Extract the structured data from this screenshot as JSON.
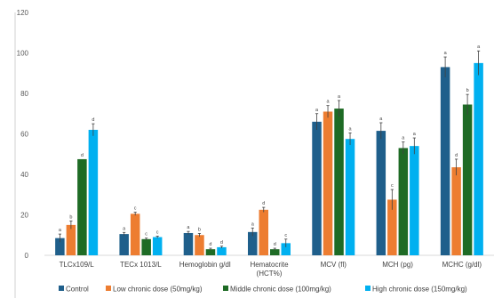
{
  "chart_data": {
    "type": "bar",
    "title": "",
    "xlabel": "",
    "ylabel": "",
    "ylim": [
      0,
      120
    ],
    "yticks": [
      0,
      20,
      40,
      60,
      80,
      100,
      120
    ],
    "grid": false,
    "legend_position": "bottom",
    "categories": [
      [
        "TLCx109/L"
      ],
      [
        "TECx 1013/L"
      ],
      [
        "Hemoglobin g/dl"
      ],
      [
        "Hematocrite",
        "(HCT%)"
      ],
      [
        "MCV (fl)"
      ],
      [
        "MCH (pg)"
      ],
      [
        "MCHC (g/dl)"
      ]
    ],
    "series": [
      {
        "name": "Control",
        "color": "#1f5f8b",
        "values": [
          8.5,
          10.5,
          11,
          11.5,
          66,
          61.5,
          93
        ],
        "errors": [
          2,
          0.8,
          0.8,
          2,
          4,
          4,
          5
        ],
        "labels": [
          "a",
          "a",
          "a",
          "a",
          "a",
          "a",
          "a"
        ]
      },
      {
        "name": "Low chronic dose (50mg/kg)",
        "color": "#ed7d31",
        "values": [
          15,
          20.5,
          10,
          22.5,
          71,
          27.5,
          43.5
        ],
        "errors": [
          2,
          0.8,
          0.8,
          1.2,
          3,
          5,
          4
        ],
        "labels": [
          "b",
          "c",
          "b",
          "d",
          "a",
          "c",
          "d"
        ]
      },
      {
        "name": "Middle chronic dose (100mg/kg)",
        "color": "#1e6b25",
        "values": [
          47.5,
          8,
          3,
          3,
          72.5,
          53,
          74.5
        ],
        "errors": [
          0,
          0.5,
          0.5,
          0.5,
          4,
          3,
          5
        ],
        "labels": [
          "d",
          "c",
          "d",
          "d",
          "a",
          "a",
          "b"
        ]
      },
      {
        "name": "High chronic dose (150mg/kg)",
        "color": "#00b0f0",
        "values": [
          62,
          9,
          4,
          6,
          57.5,
          54,
          95
        ],
        "errors": [
          3,
          0.5,
          0.5,
          2,
          3,
          4,
          6
        ],
        "labels": [
          "d",
          "c",
          "d",
          "c",
          "a",
          "a",
          "a"
        ]
      }
    ]
  }
}
